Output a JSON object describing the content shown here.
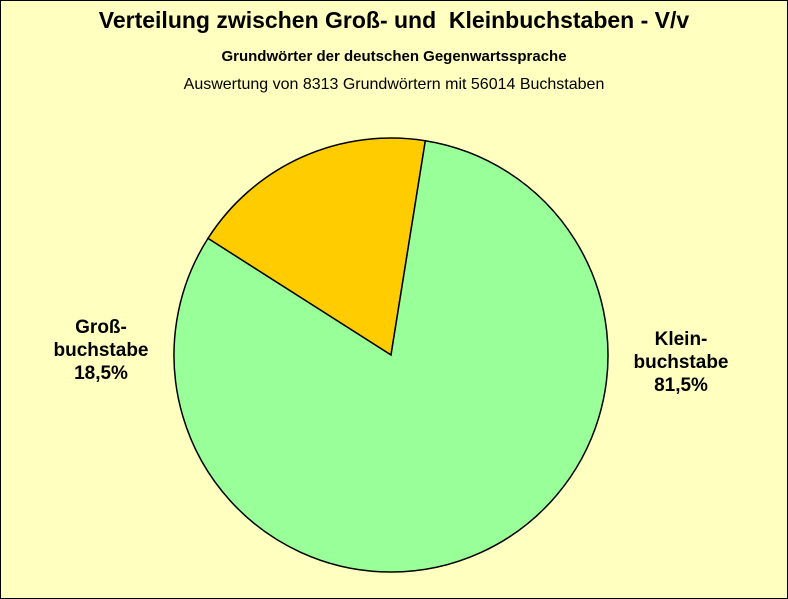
{
  "chart_data": {
    "type": "pie",
    "title": "Verteilung zwischen Groß- und  Kleinbuchstaben - V/v",
    "subtitle": "Grundwörter der deutschen Gegenwartssprache",
    "subtitle2": "Auswertung von 8313 Grundwörtern mit 56014 Buchstaben",
    "slices": [
      {
        "label": [
          "Groß-",
          "buchstabe"
        ],
        "percent_label": "18,5%",
        "value": 18.5,
        "color": "#ffcc00"
      },
      {
        "label": [
          "Klein-",
          "buchstabe"
        ],
        "percent_label": "81,5%",
        "value": 81.5,
        "color": "#99ff99"
      }
    ],
    "background": "#ffffc0"
  }
}
